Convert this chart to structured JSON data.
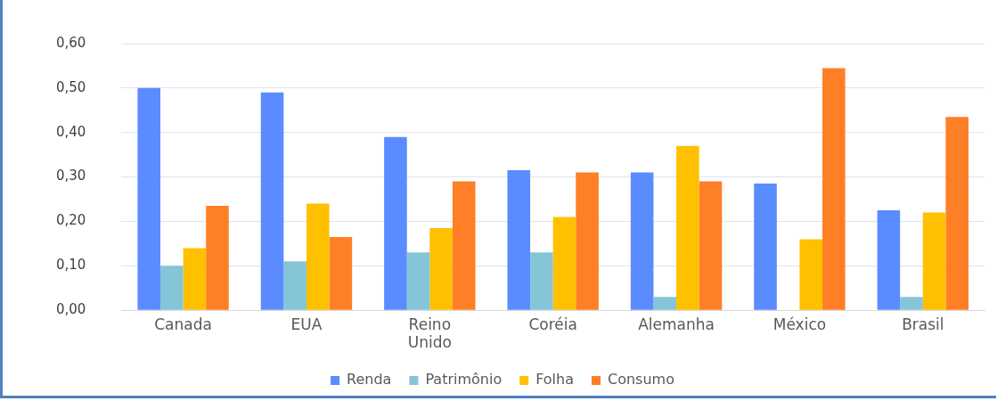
{
  "chart_data": {
    "type": "bar",
    "categories": [
      "Canada",
      "EUA",
      "Reino\nUnido",
      "Coréia",
      "Alemanha",
      "México",
      "Brasil"
    ],
    "series": [
      {
        "name": "Renda",
        "color": "#5b8cff",
        "values": [
          0.5,
          0.49,
          0.39,
          0.315,
          0.31,
          0.285,
          0.225
        ]
      },
      {
        "name": "Patrimônio",
        "color": "#86c5d8",
        "values": [
          0.1,
          0.11,
          0.13,
          0.13,
          0.03,
          0,
          0.03
        ]
      },
      {
        "name": "Folha",
        "color": "#ffc000",
        "values": [
          0.14,
          0.24,
          0.185,
          0.21,
          0.37,
          0.16,
          0.22
        ]
      },
      {
        "name": "Consumo",
        "color": "#ff7f27",
        "values": [
          0.235,
          0.165,
          0.29,
          0.31,
          0.29,
          0.545,
          0.435
        ]
      }
    ],
    "ylim": [
      0,
      0.6
    ],
    "yticks": [
      {
        "value": 0,
        "label": "0,00"
      },
      {
        "value": 0.1,
        "label": "0,10"
      },
      {
        "value": 0.2,
        "label": "0,20"
      },
      {
        "value": 0.3,
        "label": "0,30"
      },
      {
        "value": 0.4,
        "label": "0,40"
      },
      {
        "value": 0.5,
        "label": "0,50"
      },
      {
        "value": 0.6,
        "label": "0,60"
      }
    ],
    "grid": "y",
    "legend": "bottom"
  }
}
